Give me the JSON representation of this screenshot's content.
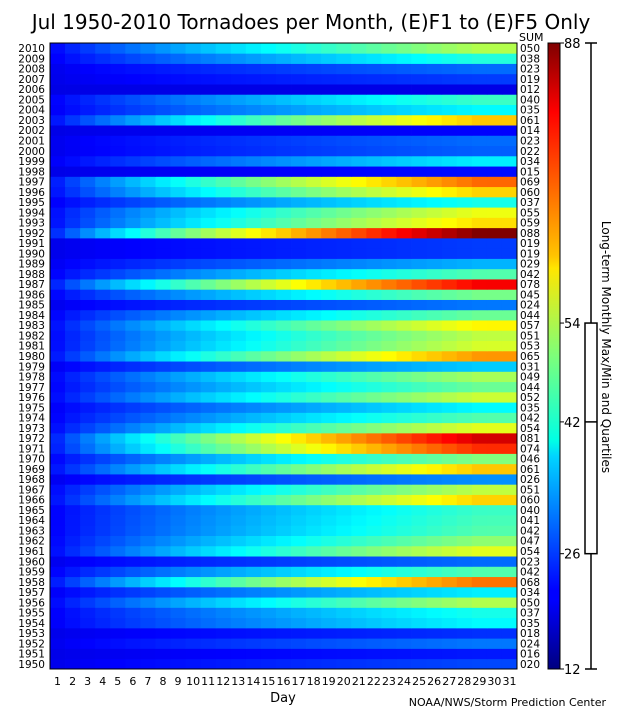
{
  "chart_data": {
    "type": "heatmap",
    "title": "Jul 1950-2010 Tornadoes per Month, (E)F1 to (E)F5 Only",
    "xlabel": "Day",
    "sum_header": "SUM",
    "colorbar_label": "Long-term Monthly Max/Min and Quartiles",
    "credit": "NOAA/NWS/Storm Prediction Center",
    "days": [
      "1",
      "2",
      "3",
      "4",
      "5",
      "6",
      "7",
      "8",
      "9",
      "10",
      "11",
      "12",
      "13",
      "14",
      "15",
      "16",
      "17",
      "18",
      "19",
      "20",
      "21",
      "22",
      "23",
      "24",
      "25",
      "26",
      "27",
      "28",
      "29",
      "30",
      "31"
    ],
    "years": [
      "1950",
      "1951",
      "1952",
      "1953",
      "1954",
      "1955",
      "1956",
      "1957",
      "1958",
      "1959",
      "1960",
      "1961",
      "1962",
      "1963",
      "1964",
      "1965",
      "1966",
      "1967",
      "1968",
      "1969",
      "1970",
      "1971",
      "1972",
      "1973",
      "1974",
      "1975",
      "1976",
      "1977",
      "1978",
      "1979",
      "1980",
      "1981",
      "1982",
      "1983",
      "1984",
      "1985",
      "1986",
      "1987",
      "1988",
      "1989",
      "1990",
      "1991",
      "1992",
      "1993",
      "1994",
      "1995",
      "1996",
      "1997",
      "1998",
      "1999",
      "2000",
      "2001",
      "2002",
      "2003",
      "2004",
      "2005",
      "2006",
      "2007",
      "2008",
      "2009",
      "2010"
    ],
    "sums": [
      "020",
      "016",
      "024",
      "018",
      "035",
      "037",
      "050",
      "034",
      "068",
      "042",
      "023",
      "054",
      "047",
      "042",
      "041",
      "040",
      "060",
      "051",
      "026",
      "061",
      "046",
      "074",
      "081",
      "054",
      "042",
      "035",
      "052",
      "044",
      "049",
      "031",
      "065",
      "053",
      "051",
      "057",
      "044",
      "024",
      "045",
      "078",
      "042",
      "029",
      "019",
      "019",
      "088",
      "059",
      "055",
      "037",
      "060",
      "069",
      "015",
      "034",
      "022",
      "023",
      "014",
      "061",
      "035",
      "040",
      "012",
      "019",
      "023",
      "038",
      "050"
    ],
    "colorbar": {
      "min": 12,
      "max": 88,
      "ticks": [
        12,
        26,
        42,
        54,
        88
      ],
      "tick_labels": [
        "12",
        "26",
        "42",
        "54",
        "88"
      ],
      "quartile_box": [
        26,
        54
      ],
      "median": 42
    }
  }
}
